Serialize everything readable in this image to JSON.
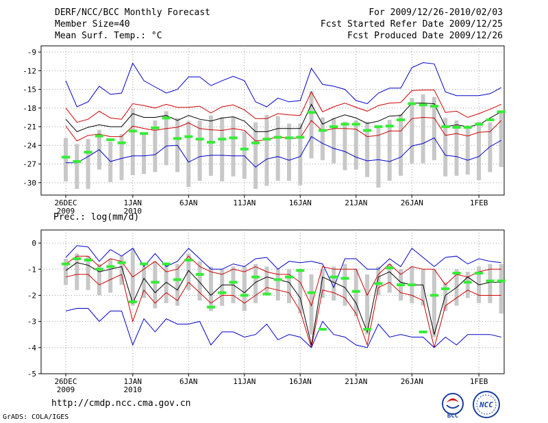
{
  "header": {
    "title": "DERF/NCC/BCC Monthly Forecast",
    "member_size": "Member Size=40",
    "variable": "Mean Surf. Temp.: °C",
    "period": "For 2009/12/26-2010/02/03",
    "start_date": "Fcst Started Refer Date 2009/12/25",
    "produced_date": "Fcst Produced Date 2009/12/26"
  },
  "precip_label": "Prec.: log(mm/d)",
  "footer": {
    "url": "http://cmdp.ncc.cma.gov.cn",
    "credit": "GrADS: COLA/IGES",
    "logo_bcc": "BCC",
    "logo_ncc": "NCC"
  },
  "colors": {
    "outer": "#0000cc",
    "inner": "#cc0000",
    "mean": "#000000",
    "box": "#c8c8c8",
    "obs": "#33ee33",
    "grid": "#999999"
  },
  "chart_data": [
    {
      "type": "line",
      "title": "Mean Surf. Temp.: °C",
      "ylabel": "°C",
      "ylim": [
        -32,
        -8
      ],
      "yticks": [
        -9,
        -12,
        -15,
        -18,
        -21,
        -24,
        -27,
        -30
      ],
      "x_start_day": 0,
      "x_end_day": 39,
      "date_ticks": [
        {
          "day": 0,
          "label": "26DEC",
          "sub": "2009"
        },
        {
          "day": 6,
          "label": "1JAN",
          "sub": "2010"
        },
        {
          "day": 11,
          "label": "6JAN",
          "sub": ""
        },
        {
          "day": 16,
          "label": "11JAN",
          "sub": ""
        },
        {
          "day": 21,
          "label": "16JAN",
          "sub": ""
        },
        {
          "day": 26,
          "label": "21JAN",
          "sub": ""
        },
        {
          "day": 31,
          "label": "26JAN",
          "sub": ""
        },
        {
          "day": 37,
          "label": "1FEB",
          "sub": ""
        }
      ],
      "series": [
        {
          "name": "max",
          "values": [
            -13.6,
            -17.8,
            -17.0,
            -14.5,
            -15.8,
            -15.6,
            -10.8,
            -13.6,
            -14.6,
            -15.6,
            -15.0,
            -13.0,
            -13.0,
            -14.4,
            -13.6,
            -12.9,
            -13.6,
            -17.0,
            -17.8,
            -16.4,
            -17.0,
            -16.8,
            -11.6,
            -14.2,
            -14.5,
            -15.0,
            -16.8,
            -17.3,
            -15.6,
            -14.8,
            -14.8,
            -11.5,
            -10.7,
            -10.9,
            -15.4,
            -16.0,
            -16.0,
            -16.0,
            -15.7,
            -14.7
          ]
        },
        {
          "name": "p75",
          "values": [
            -18.0,
            -20.3,
            -19.8,
            -18.5,
            -19.6,
            -19.8,
            -17.3,
            -17.6,
            -18.0,
            -17.4,
            -17.9,
            -17.9,
            -17.7,
            -18.8,
            -17.8,
            -17.5,
            -18.3,
            -19.7,
            -19.7,
            -18.9,
            -19.1,
            -19.2,
            -15.4,
            -18.6,
            -17.8,
            -17.2,
            -17.9,
            -18.5,
            -17.6,
            -17.2,
            -17.1,
            -15.2,
            -15.1,
            -15.1,
            -18.7,
            -18.5,
            -19.5,
            -18.9,
            -18.2,
            -17.4
          ]
        },
        {
          "name": "mean",
          "values": [
            -19.8,
            -21.8,
            -21.1,
            -20.7,
            -21.0,
            -21.0,
            -18.9,
            -19.5,
            -19.5,
            -19.2,
            -20.0,
            -19.2,
            -19.8,
            -20.1,
            -19.6,
            -19.4,
            -20.1,
            -21.8,
            -21.8,
            -21.3,
            -21.3,
            -21.3,
            -17.4,
            -20.6,
            -19.7,
            -19.1,
            -19.6,
            -20.5,
            -20.1,
            -19.3,
            -19.2,
            -17.2,
            -17.2,
            -17.3,
            -21.0,
            -20.7,
            -21.0,
            -20.7,
            -19.6,
            -18.6
          ]
        },
        {
          "name": "p25",
          "values": [
            -20.9,
            -23.3,
            -22.4,
            -22.2,
            -22.6,
            -22.6,
            -20.9,
            -21.3,
            -21.6,
            -21.3,
            -21.1,
            -20.4,
            -21.3,
            -21.5,
            -21.6,
            -21.3,
            -21.6,
            -23.3,
            -23.1,
            -22.6,
            -22.9,
            -22.8,
            -20.0,
            -21.7,
            -21.3,
            -21.3,
            -21.4,
            -22.6,
            -22.4,
            -21.7,
            -21.7,
            -19.7,
            -19.5,
            -19.6,
            -22.4,
            -22.1,
            -22.5,
            -21.9,
            -21.8,
            -20.0
          ]
        },
        {
          "name": "min",
          "values": [
            -26.8,
            -26.8,
            -25.8,
            -24.7,
            -26.6,
            -26.1,
            -25.7,
            -25.7,
            -25.5,
            -24.1,
            -24.0,
            -26.7,
            -25.8,
            -25.6,
            -25.6,
            -25.7,
            -25.7,
            -27.5,
            -26.2,
            -25.8,
            -26.4,
            -25.8,
            -22.6,
            -23.7,
            -24.5,
            -25.0,
            -25.9,
            -26.5,
            -26.3,
            -26.6,
            -25.9,
            -24.1,
            -23.7,
            -22.8,
            -25.6,
            -25.8,
            -26.4,
            -25.8,
            -24.2,
            -23.2
          ]
        }
      ],
      "boxes_low": [
        -29.8,
        -31.0,
        -31.0,
        -27.9,
        -29.9,
        -29.6,
        -28.8,
        -28.6,
        -28.3,
        -27.2,
        -28.3,
        -30.7,
        -29.7,
        -28.9,
        -29.8,
        -29.0,
        -29.4,
        -31.0,
        -30.5,
        -29.7,
        -29.7,
        -30.4,
        -26.1,
        -26.4,
        -26.9,
        -28.0,
        -27.9,
        -29.1,
        -30.8,
        -29.7,
        -28.9,
        -26.9,
        -26.9,
        -26.4,
        -29.0,
        -28.9,
        -28.7,
        -29.6,
        -28.3,
        -27.5
      ],
      "boxes_high": [
        -22.8,
        -23.8,
        -23.0,
        -21.5,
        -23.4,
        -22.2,
        -18.0,
        -22.1,
        -20.0,
        -18.5,
        -19.6,
        -20.1,
        -20.0,
        -19.2,
        -19.5,
        -19.4,
        -21.8,
        -20.3,
        -19.1,
        -19.3,
        -20.5,
        -20.5,
        -15.3,
        -19.5,
        -19.6,
        -20.2,
        -20.0,
        -20.2,
        -20.8,
        -19.9,
        -19.0,
        -16.4,
        -15.8,
        -16.2,
        -19.6,
        -20.0,
        -20.8,
        -20.2,
        -20.3,
        -18.8
      ],
      "observed": [
        -25.9,
        -26.6,
        -25.1,
        -22.5,
        -23.1,
        -23.6,
        -21.7,
        -22.1,
        -21.2,
        -19.6,
        -22.9,
        -22.6,
        -23.0,
        -23.5,
        -23.0,
        -22.8,
        -24.6,
        -23.6,
        -23.0,
        -22.7,
        -22.8,
        -22.7,
        -18.7,
        -21.6,
        -21.0,
        -20.6,
        -20.6,
        -21.6,
        -21.0,
        -20.9,
        -19.9,
        -17.3,
        -17.5,
        -17.7,
        -21.0,
        -21.1,
        -21.1,
        -20.6,
        -19.9,
        -18.6
      ]
    },
    {
      "type": "line",
      "title": "Prec.: log(mm/d)",
      "ylabel": "log(mm/d)",
      "ylim": [
        -5,
        0.5
      ],
      "yticks": [
        0,
        -1,
        -2,
        -3,
        -4,
        -5
      ],
      "x_start_day": 0,
      "x_end_day": 39,
      "date_ticks": [
        {
          "day": 0,
          "label": "26DEC",
          "sub": "2009"
        },
        {
          "day": 6,
          "label": "1JAN",
          "sub": "2010"
        },
        {
          "day": 11,
          "label": "6JAN",
          "sub": ""
        },
        {
          "day": 16,
          "label": "11JAN",
          "sub": ""
        },
        {
          "day": 21,
          "label": "16JAN",
          "sub": ""
        },
        {
          "day": 26,
          "label": "21JAN",
          "sub": ""
        },
        {
          "day": 31,
          "label": "26JAN",
          "sub": ""
        },
        {
          "day": 37,
          "label": "1FEB",
          "sub": ""
        }
      ],
      "series": [
        {
          "name": "max",
          "values": [
            -0.55,
            -0.1,
            -0.15,
            -0.7,
            -0.25,
            -0.5,
            -0.2,
            -0.9,
            -0.4,
            -0.9,
            -0.7,
            -0.2,
            -0.6,
            -1.0,
            -1.0,
            -0.8,
            -0.9,
            -0.6,
            -0.55,
            -1.0,
            -0.7,
            -0.75,
            -0.7,
            -0.8,
            -1.7,
            -0.6,
            -0.6,
            -1.0,
            -1.0,
            -0.6,
            -0.9,
            -0.2,
            -0.55,
            -0.9,
            -0.55,
            -0.5,
            -0.8,
            -0.6,
            -0.7,
            -0.75
          ]
        },
        {
          "name": "p75",
          "values": [
            -0.8,
            -0.5,
            -0.5,
            -0.9,
            -0.6,
            -0.7,
            -1.3,
            -1.0,
            -0.7,
            -1.1,
            -1.0,
            -0.5,
            -0.9,
            -1.1,
            -1.2,
            -1.0,
            -1.1,
            -0.9,
            -1.1,
            -1.2,
            -1.2,
            -1.5,
            -2.4,
            -0.9,
            -1.0,
            -1.0,
            -1.0,
            -2.0,
            -1.2,
            -0.8,
            -1.2,
            -0.9,
            -1.0,
            -1.0,
            -1.6,
            -1.2,
            -1.3,
            -1.1,
            -1.0,
            -1.0
          ]
        },
        {
          "name": "mean",
          "values": [
            -1.05,
            -0.75,
            -0.85,
            -1.1,
            -1.0,
            -0.9,
            -2.3,
            -1.35,
            -1.9,
            -1.5,
            -1.8,
            -1.05,
            -1.5,
            -2.0,
            -1.6,
            -1.6,
            -1.9,
            -1.5,
            -1.3,
            -1.4,
            -1.5,
            -2.1,
            -3.9,
            -1.3,
            -1.5,
            -1.7,
            -2.3,
            -3.4,
            -1.3,
            -1.1,
            -1.5,
            -1.6,
            -1.6,
            -3.5,
            -2.0,
            -1.7,
            -1.3,
            -1.6,
            -1.5,
            -1.5
          ]
        },
        {
          "name": "p25",
          "values": [
            -1.3,
            -1.2,
            -1.2,
            -1.6,
            -1.4,
            -1.2,
            -3.0,
            -1.8,
            -2.3,
            -1.9,
            -2.2,
            -1.5,
            -1.9,
            -2.3,
            -2.0,
            -2.0,
            -2.3,
            -2.0,
            -1.7,
            -1.8,
            -1.9,
            -2.6,
            -4.0,
            -1.8,
            -1.9,
            -2.1,
            -2.7,
            -3.9,
            -1.7,
            -1.5,
            -1.9,
            -2.0,
            -2.2,
            -4.0,
            -2.4,
            -2.1,
            -1.8,
            -2.0,
            -2.0,
            -2.0
          ]
        },
        {
          "name": "min",
          "values": [
            -2.6,
            -2.5,
            -2.5,
            -3.0,
            -2.6,
            -2.6,
            -3.9,
            -2.9,
            -3.4,
            -2.9,
            -3.1,
            -3.1,
            -3.0,
            -3.9,
            -3.4,
            -3.4,
            -3.6,
            -3.5,
            -3.1,
            -3.7,
            -3.5,
            -3.6,
            -4.0,
            -3.0,
            -3.5,
            -3.6,
            -3.9,
            -4.0,
            -3.1,
            -3.6,
            -3.5,
            -3.6,
            -3.6,
            -4.0,
            -3.6,
            -3.9,
            -3.5,
            -3.5,
            -3.5,
            -3.6
          ]
        }
      ],
      "boxes_low": [
        -1.6,
        -1.8,
        -1.8,
        -2.0,
        -1.9,
        -1.6,
        -2.4,
        -2.1,
        -2.5,
        -2.3,
        -2.4,
        -1.8,
        -2.2,
        -2.6,
        -2.4,
        -2.3,
        -2.6,
        -2.3,
        -2.0,
        -2.2,
        -2.3,
        -2.7,
        -3.5,
        -2.1,
        -2.2,
        -2.4,
        -2.8,
        -3.5,
        -2.0,
        -1.9,
        -2.2,
        -2.3,
        -2.4,
        -3.6,
        -2.6,
        -2.4,
        -2.1,
        -2.3,
        -2.3,
        -2.7
      ],
      "boxes_high": [
        -0.6,
        -0.4,
        -0.5,
        -0.8,
        -0.6,
        -0.5,
        -0.2,
        -0.9,
        -0.7,
        -0.8,
        -0.8,
        -0.4,
        -0.7,
        -0.9,
        -1.0,
        -0.9,
        -0.9,
        -0.8,
        -0.9,
        -1.0,
        -1.0,
        -1.0,
        -1.2,
        -1.0,
        -0.9,
        -0.8,
        -1.0,
        -1.2,
        -0.9,
        -0.8,
        -1.0,
        -0.9,
        -1.0,
        -1.0,
        -1.5,
        -1.0,
        -1.1,
        -0.9,
        -0.8,
        -0.8
      ],
      "observed": [
        -0.8,
        -0.6,
        -0.65,
        -1.0,
        -0.9,
        -0.75,
        -2.25,
        -0.8,
        -1.5,
        -0.8,
        -1.4,
        -0.65,
        -1.2,
        -2.45,
        -1.9,
        -1.5,
        -2.0,
        -1.3,
        -1.95,
        -1.4,
        -1.3,
        -1.05,
        -1.9,
        -3.3,
        -1.3,
        -1.35,
        -1.85,
        -3.3,
        -1.55,
        -0.95,
        -1.6,
        -1.6,
        -3.4,
        -2.0,
        -1.75,
        -1.15,
        -1.5,
        -1.15,
        -1.45,
        -1.45
      ]
    }
  ]
}
